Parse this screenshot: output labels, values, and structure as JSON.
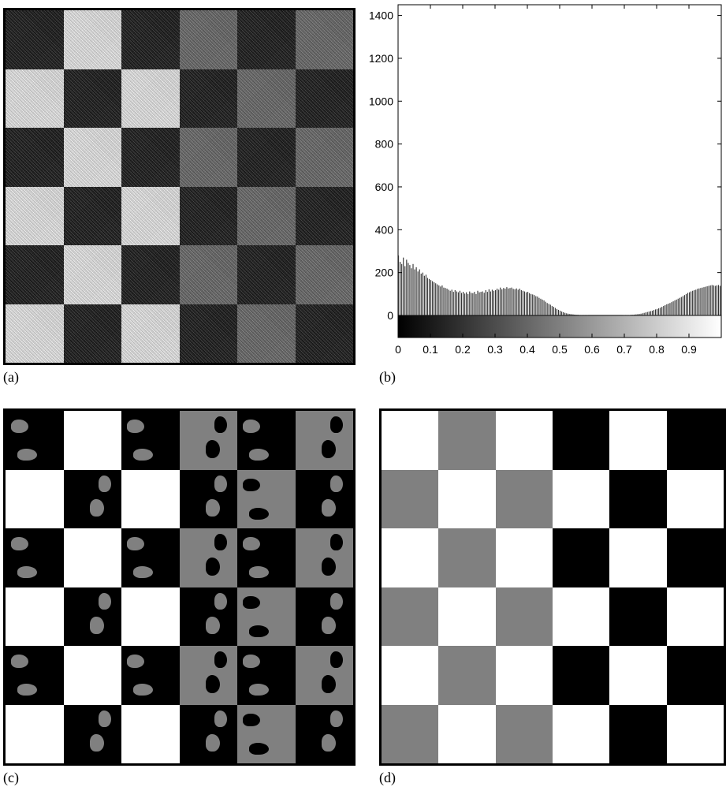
{
  "captions": {
    "a": "(a)",
    "b": "(b)",
    "c": "(c)",
    "d": "(d)"
  },
  "panels": {
    "a": {
      "description_levels": [
        [
          "dark",
          "light",
          "dark",
          "mid",
          "dark",
          "mid"
        ],
        [
          "light",
          "dark",
          "light",
          "dark",
          "mid",
          "dark"
        ],
        [
          "dark",
          "light",
          "dark",
          "mid",
          "dark",
          "mid"
        ],
        [
          "light",
          "dark",
          "light",
          "dark",
          "mid",
          "dark"
        ],
        [
          "dark",
          "light",
          "dark",
          "mid",
          "dark",
          "mid"
        ],
        [
          "light",
          "dark",
          "light",
          "dark",
          "mid",
          "dark"
        ]
      ]
    },
    "c": {
      "levels": [
        [
          "black",
          "white",
          "black",
          "gray",
          "black",
          "gray"
        ],
        [
          "white",
          "black",
          "white",
          "black",
          "gray",
          "black"
        ],
        [
          "black",
          "white",
          "black",
          "gray",
          "black",
          "gray"
        ],
        [
          "white",
          "black",
          "white",
          "black",
          "gray",
          "black"
        ],
        [
          "black",
          "white",
          "black",
          "gray",
          "black",
          "gray"
        ],
        [
          "white",
          "black",
          "white",
          "black",
          "gray",
          "black"
        ]
      ]
    },
    "d": {
      "levels": [
        [
          "white",
          "gray",
          "white",
          "black",
          "white",
          "black"
        ],
        [
          "gray",
          "white",
          "gray",
          "white",
          "black",
          "white"
        ],
        [
          "white",
          "gray",
          "white",
          "black",
          "white",
          "black"
        ],
        [
          "gray",
          "white",
          "gray",
          "white",
          "black",
          "white"
        ],
        [
          "white",
          "gray",
          "white",
          "black",
          "white",
          "black"
        ],
        [
          "gray",
          "white",
          "gray",
          "white",
          "black",
          "white"
        ]
      ]
    }
  },
  "colors": {
    "black": "#000000",
    "gray": "#808080",
    "white": "#ffffff",
    "dark": "#1a1a1a",
    "mid": "#6a6a6a",
    "light": "#ececec"
  },
  "chart_data": {
    "type": "bar",
    "xlim": [
      0,
      1
    ],
    "ylim": [
      0,
      1450
    ],
    "xticks": [
      0,
      0.1,
      0.2,
      0.3,
      0.4,
      0.5,
      0.6,
      0.7,
      0.8,
      0.9
    ],
    "xtick_labels": [
      "0",
      "0.1",
      "0.2",
      "0.3",
      "0.4",
      "0.5",
      "0.6",
      "0.7",
      "0.8",
      "0.9"
    ],
    "yticks": [
      0,
      200,
      400,
      600,
      800,
      1000,
      1200,
      1400
    ],
    "ytick_labels": [
      "0",
      "200",
      "400",
      "600",
      "800",
      "1000",
      "1200",
      "1400"
    ],
    "colorbar": "grayscale gradient from black (0) to white (1)",
    "x": [
      0.0,
      0.005,
      0.01,
      0.015,
      0.02,
      0.025,
      0.03,
      0.035,
      0.04,
      0.045,
      0.05,
      0.055,
      0.06,
      0.065,
      0.07,
      0.075,
      0.08,
      0.085,
      0.09,
      0.095,
      0.1,
      0.105,
      0.11,
      0.115,
      0.12,
      0.125,
      0.13,
      0.135,
      0.14,
      0.145,
      0.15,
      0.155,
      0.16,
      0.165,
      0.17,
      0.175,
      0.18,
      0.185,
      0.19,
      0.195,
      0.2,
      0.205,
      0.21,
      0.215,
      0.22,
      0.225,
      0.23,
      0.235,
      0.24,
      0.245,
      0.25,
      0.255,
      0.26,
      0.265,
      0.27,
      0.275,
      0.28,
      0.285,
      0.29,
      0.295,
      0.3,
      0.305,
      0.31,
      0.315,
      0.32,
      0.325,
      0.33,
      0.335,
      0.34,
      0.345,
      0.35,
      0.355,
      0.36,
      0.365,
      0.37,
      0.375,
      0.38,
      0.385,
      0.39,
      0.395,
      0.4,
      0.405,
      0.41,
      0.415,
      0.42,
      0.425,
      0.43,
      0.435,
      0.44,
      0.445,
      0.45,
      0.455,
      0.46,
      0.465,
      0.47,
      0.475,
      0.48,
      0.485,
      0.49,
      0.495,
      0.5,
      0.505,
      0.51,
      0.515,
      0.52,
      0.525,
      0.53,
      0.535,
      0.54,
      0.545,
      0.55,
      0.555,
      0.56,
      0.565,
      0.57,
      0.575,
      0.58,
      0.585,
      0.59,
      0.595,
      0.6,
      0.605,
      0.61,
      0.615,
      0.62,
      0.625,
      0.63,
      0.635,
      0.64,
      0.645,
      0.65,
      0.655,
      0.66,
      0.665,
      0.67,
      0.675,
      0.68,
      0.685,
      0.69,
      0.695,
      0.7,
      0.705,
      0.71,
      0.715,
      0.72,
      0.725,
      0.73,
      0.735,
      0.74,
      0.745,
      0.75,
      0.755,
      0.76,
      0.765,
      0.77,
      0.775,
      0.78,
      0.785,
      0.79,
      0.795,
      0.8,
      0.805,
      0.81,
      0.815,
      0.82,
      0.825,
      0.83,
      0.835,
      0.84,
      0.845,
      0.85,
      0.855,
      0.86,
      0.865,
      0.87,
      0.875,
      0.88,
      0.885,
      0.89,
      0.895,
      0.9,
      0.905,
      0.91,
      0.915,
      0.92,
      0.925,
      0.93,
      0.935,
      0.94,
      0.945,
      0.95,
      0.955,
      0.96,
      0.965,
      0.97,
      0.975,
      0.98,
      0.985,
      0.99,
      0.995
    ],
    "values": [
      280,
      250,
      240,
      270,
      230,
      260,
      245,
      235,
      220,
      240,
      215,
      225,
      205,
      215,
      195,
      200,
      185,
      190,
      175,
      170,
      165,
      160,
      155,
      150,
      145,
      140,
      135,
      140,
      130,
      128,
      125,
      120,
      115,
      120,
      110,
      118,
      112,
      108,
      115,
      105,
      110,
      102,
      108,
      100,
      112,
      105,
      104,
      110,
      100,
      115,
      108,
      110,
      112,
      106,
      118,
      110,
      122,
      112,
      120,
      115,
      118,
      125,
      120,
      130,
      122,
      128,
      125,
      132,
      126,
      128,
      130,
      124,
      122,
      126,
      120,
      125,
      118,
      115,
      112,
      108,
      110,
      104,
      100,
      98,
      95,
      90,
      88,
      82,
      78,
      74,
      70,
      64,
      58,
      54,
      50,
      44,
      40,
      35,
      30,
      26,
      22,
      18,
      15,
      12,
      10,
      8,
      7,
      6,
      5,
      4,
      3,
      3,
      2,
      2,
      1,
      1,
      1,
      1,
      0,
      0,
      0,
      0,
      0,
      0,
      0,
      0,
      0,
      0,
      0,
      0,
      0,
      0,
      0,
      0,
      0,
      0,
      0,
      0,
      0,
      1,
      1,
      1,
      2,
      2,
      3,
      3,
      4,
      5,
      6,
      7,
      8,
      10,
      12,
      14,
      16,
      18,
      20,
      22,
      25,
      28,
      30,
      33,
      36,
      40,
      44,
      48,
      52,
      55,
      58,
      62,
      66,
      70,
      74,
      78,
      82,
      86,
      90,
      95,
      100,
      105,
      108,
      112,
      115,
      118,
      120,
      124,
      126,
      128,
      130,
      132,
      134,
      136,
      138,
      140,
      142,
      140,
      138,
      140,
      142,
      138
    ]
  }
}
